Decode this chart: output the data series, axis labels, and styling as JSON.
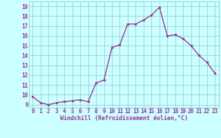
{
  "x": [
    0,
    1,
    2,
    3,
    4,
    5,
    6,
    7,
    8,
    9,
    10,
    11,
    12,
    13,
    14,
    15,
    16,
    17,
    18,
    19,
    20,
    21,
    22,
    23
  ],
  "y": [
    9.8,
    9.2,
    9.0,
    9.2,
    9.3,
    9.4,
    9.5,
    9.3,
    11.2,
    11.5,
    14.8,
    15.1,
    17.2,
    17.2,
    17.6,
    18.1,
    18.9,
    16.0,
    16.1,
    15.7,
    15.0,
    14.0,
    13.3,
    12.2
  ],
  "line_color": "#993399",
  "marker_color": "#993399",
  "bg_color": "#ccffff",
  "grid_color": "#99cccc",
  "xlabel": "Windchill (Refroidissement éolien,°C)",
  "ylabel_ticks": [
    9,
    10,
    11,
    12,
    13,
    14,
    15,
    16,
    17,
    18,
    19
  ],
  "ylim": [
    8.7,
    19.5
  ],
  "xlim": [
    -0.5,
    23.5
  ],
  "tick_color": "#993399",
  "label_color": "#993399",
  "tick_fontsize": 5.5,
  "label_fontsize": 6.0
}
